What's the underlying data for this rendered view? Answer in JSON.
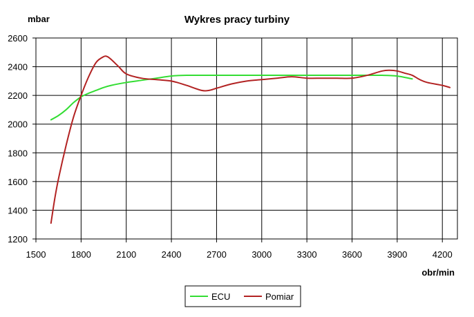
{
  "chart_data": {
    "type": "line",
    "title": "Wykres pracy turbiny",
    "xlabel": "obr/min",
    "ylabel": "mbar",
    "xlim": [
      1500,
      4300
    ],
    "ylim": [
      1200,
      2600
    ],
    "xticks": [
      1500,
      1800,
      2100,
      2400,
      2700,
      3000,
      3300,
      3600,
      3900,
      4200
    ],
    "yticks": [
      1200,
      1400,
      1600,
      1800,
      2000,
      2200,
      2400,
      2600
    ],
    "grid": true,
    "legend_position": "bottom-center",
    "series": [
      {
        "name": "ECU",
        "color": "#33dd33",
        "x": [
          1600,
          1650,
          1700,
          1750,
          1800,
          1850,
          1900,
          1950,
          2000,
          2100,
          2200,
          2300,
          2400,
          2500,
          2700,
          3000,
          3300,
          3600,
          3800,
          3900,
          4000
        ],
        "y": [
          2030,
          2060,
          2100,
          2150,
          2190,
          2215,
          2235,
          2255,
          2270,
          2290,
          2305,
          2320,
          2335,
          2340,
          2340,
          2340,
          2340,
          2340,
          2340,
          2335,
          2315
        ]
      },
      {
        "name": "Pomiar",
        "color": "#b22222",
        "x": [
          1600,
          1625,
          1650,
          1700,
          1750,
          1800,
          1850,
          1900,
          1950,
          1975,
          2000,
          2050,
          2100,
          2200,
          2300,
          2400,
          2500,
          2600,
          2650,
          2700,
          2800,
          2900,
          3000,
          3100,
          3200,
          3300,
          3400,
          3500,
          3600,
          3700,
          3800,
          3850,
          3900,
          3950,
          4000,
          4050,
          4100,
          4200,
          4250
        ],
        "y": [
          1310,
          1480,
          1620,
          1850,
          2050,
          2200,
          2330,
          2430,
          2470,
          2470,
          2450,
          2400,
          2350,
          2320,
          2310,
          2300,
          2270,
          2235,
          2235,
          2250,
          2280,
          2300,
          2310,
          2320,
          2330,
          2320,
          2320,
          2320,
          2320,
          2340,
          2370,
          2375,
          2370,
          2355,
          2340,
          2310,
          2290,
          2270,
          2255
        ]
      }
    ]
  }
}
